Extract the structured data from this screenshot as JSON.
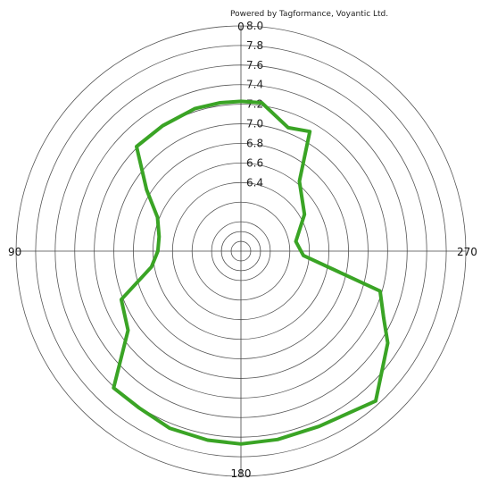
{
  "credit": "Powered by Tagformance, Voyantic Ltd.",
  "colors": {
    "series": "#3aa425",
    "grid": "#555555"
  },
  "chart_data": {
    "type": "polar-line",
    "title": "",
    "angular_unit": "degrees",
    "angle_direction": "counterclockwise",
    "zero_location": "top",
    "angle_labels": [
      "0",
      "90",
      "180",
      "270"
    ],
    "angle_label_values": [
      0,
      90,
      180,
      270
    ],
    "radial_ticks": [
      "6.4",
      "6.6",
      "6.8",
      "7.0",
      "7.2",
      "7.4",
      "7.6",
      "7.8",
      "8.0"
    ],
    "radial_tick_values": [
      6.4,
      6.6,
      6.8,
      7.0,
      7.2,
      7.4,
      7.6,
      7.8,
      8.0
    ],
    "rlim": [
      5.7,
      8.0
    ],
    "rings": [
      5.8,
      5.9,
      6.0,
      6.2,
      6.4,
      6.6,
      6.8,
      7.0,
      7.2,
      7.4,
      7.6,
      7.8,
      8.0
    ],
    "grid": true,
    "legend": "none",
    "series": [
      {
        "points": [
          {
            "angle": 0,
            "r": 7.23
          },
          {
            "angle": 8,
            "r": 7.23
          },
          {
            "angle": 18,
            "r": 7.23
          },
          {
            "angle": 32,
            "r": 7.21
          },
          {
            "angle": 45,
            "r": 7.21
          },
          {
            "angle": 57,
            "r": 6.85
          },
          {
            "angle": 68,
            "r": 6.62
          },
          {
            "angle": 80,
            "r": 6.55
          },
          {
            "angle": 90,
            "r": 6.55
          },
          {
            "angle": 100,
            "r": 6.63
          },
          {
            "angle": 112,
            "r": 7.02
          },
          {
            "angle": 125,
            "r": 7.11
          },
          {
            "angle": 137,
            "r": 7.61
          },
          {
            "angle": 147,
            "r": 7.61
          },
          {
            "angle": 158,
            "r": 7.65
          },
          {
            "angle": 170,
            "r": 7.66
          },
          {
            "angle": 180,
            "r": 7.67
          },
          {
            "angle": 191,
            "r": 7.66
          },
          {
            "angle": 204,
            "r": 7.66
          },
          {
            "angle": 222,
            "r": 7.76
          },
          {
            "angle": 238,
            "r": 7.47
          },
          {
            "angle": 245,
            "r": 7.31
          },
          {
            "angle": 254,
            "r": 7.18
          },
          {
            "angle": 266,
            "r": 6.34
          },
          {
            "angle": 280,
            "r": 6.27
          },
          {
            "angle": 300,
            "r": 6.45
          },
          {
            "angle": 320,
            "r": 6.63
          },
          {
            "angle": 330,
            "r": 7.11
          },
          {
            "angle": 339,
            "r": 7.05
          },
          {
            "angle": 352,
            "r": 7.23
          },
          {
            "angle": 360,
            "r": 7.23
          }
        ]
      }
    ]
  }
}
